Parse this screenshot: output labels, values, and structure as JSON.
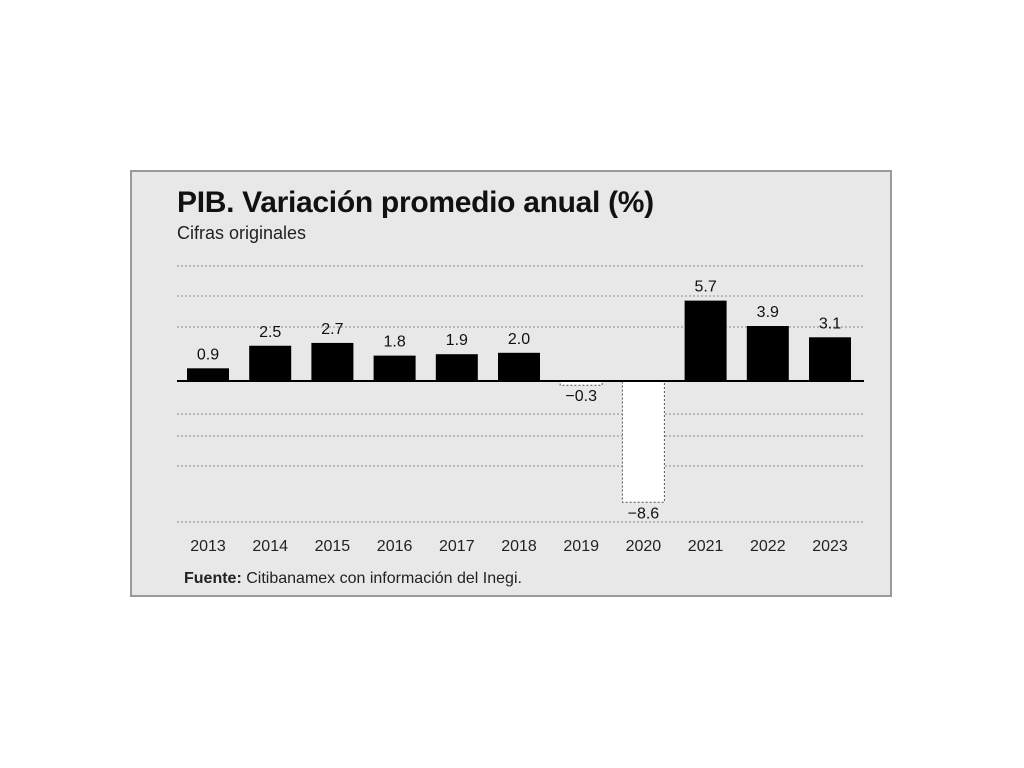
{
  "chart_data": {
    "type": "bar",
    "title": "PIB. Variación promedio anual (%)",
    "subtitle": "Cifras originales",
    "categories": [
      "2013",
      "2014",
      "2015",
      "2016",
      "2017",
      "2018",
      "2019",
      "2020",
      "2021",
      "2022",
      "2023"
    ],
    "values": [
      0.9,
      2.5,
      2.7,
      1.8,
      1.9,
      2.0,
      -0.3,
      -8.6,
      5.7,
      3.9,
      3.1
    ],
    "value_labels": [
      "0.9",
      "2.5",
      "2.7",
      "1.8",
      "1.9",
      "2.0",
      "−0.3",
      "−8.6",
      "5.7",
      "3.9",
      "3.1"
    ],
    "xlabel": "",
    "ylabel": "",
    "ylim": [
      -9.5,
      7.8
    ],
    "grid": true,
    "legend": "none",
    "colors": {
      "positive": "#000000",
      "negative_fill": "#ffffff",
      "negative_stroke": "#555555",
      "background": "#e8e8e8"
    }
  },
  "source": {
    "label": "Fuente:",
    "text": "Citibanamex con información del Inegi."
  }
}
